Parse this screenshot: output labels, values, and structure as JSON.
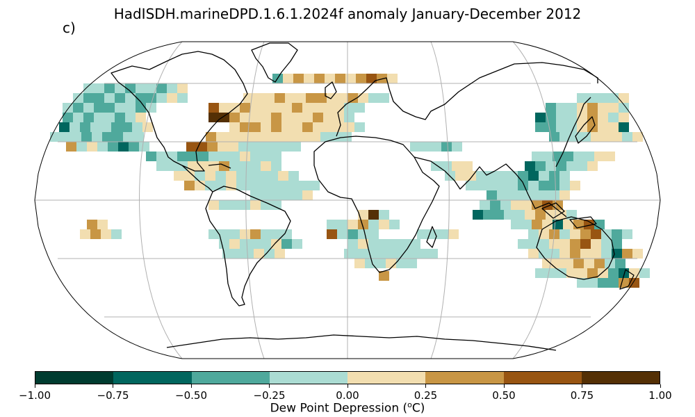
{
  "title": "HadISDH.marineDPD.1.6.1.2024f anomaly January-December 2012",
  "panel_label": "c)",
  "colorbar": {
    "label_prefix": "Dew Point Depression (",
    "label_sup": "o",
    "label_suffix": "C)",
    "ticks": [
      "−1.00",
      "−0.75",
      "−0.50",
      "−0.25",
      "0.00",
      "0.25",
      "0.50",
      "0.75",
      "1.00"
    ],
    "colors": [
      "#003c30",
      "#01665e",
      "#4fa99c",
      "#abdcd3",
      "#f2deb0",
      "#c89645",
      "#985512",
      "#543005"
    ]
  },
  "map": {
    "projection": "Robinson",
    "graticule": true
  }
}
